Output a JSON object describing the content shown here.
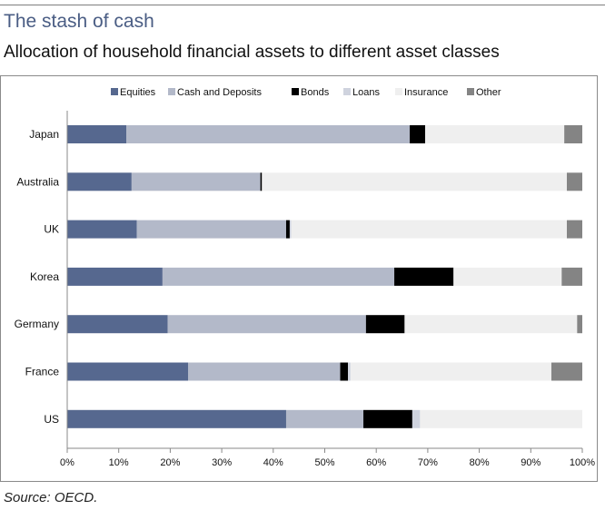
{
  "header": {
    "title": "The stash of cash",
    "subtitle": "Allocation of household financial assets to different asset classes"
  },
  "source": "Source: OECD.",
  "chart_data": {
    "type": "bar",
    "orientation": "horizontal",
    "stacked": "percent",
    "categories": [
      "Japan",
      "Australia",
      "UK",
      "Korea",
      "Germany",
      "France",
      "US"
    ],
    "series": [
      {
        "name": "Equities",
        "color": "#56688f",
        "values": [
          11.5,
          12.5,
          13.5,
          18.5,
          19.5,
          23.5,
          42.5
        ]
      },
      {
        "name": "Cash and Deposits",
        "color": "#b3b9c9",
        "values": [
          55.0,
          25.0,
          29.0,
          45.0,
          38.5,
          29.5,
          15.0
        ]
      },
      {
        "name": "Bonds",
        "color": "#000000",
        "values": [
          3.0,
          0.3,
          0.7,
          11.5,
          7.5,
          1.5,
          9.5
        ]
      },
      {
        "name": "Loans",
        "color": "#cfd3de",
        "values": [
          0.0,
          0.0,
          0.3,
          0.0,
          0.0,
          0.5,
          1.5
        ]
      },
      {
        "name": "Insurance",
        "color": "#efefef",
        "values": [
          27.0,
          59.2,
          53.5,
          21.0,
          33.5,
          39.0,
          31.5
        ]
      },
      {
        "name": "Other",
        "color": "#848484",
        "values": [
          3.5,
          3.0,
          3.0,
          4.0,
          1.0,
          6.0,
          0.0
        ]
      }
    ],
    "x_ticks": [
      "0%",
      "10%",
      "20%",
      "30%",
      "40%",
      "50%",
      "60%",
      "70%",
      "80%",
      "90%",
      "100%"
    ],
    "xlim": [
      0,
      100
    ],
    "legend_position": "top",
    "grid": false
  }
}
